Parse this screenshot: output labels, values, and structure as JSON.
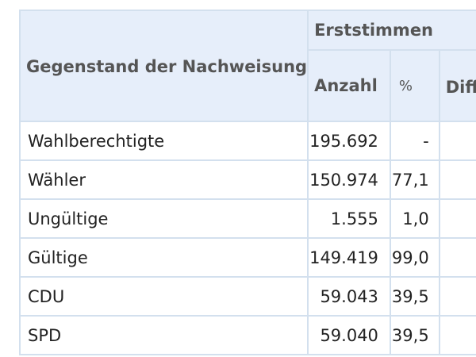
{
  "table": {
    "header": {
      "subject": "Gegenstand der Nachweisung",
      "group": "Erststimmen",
      "count": "Anzahl",
      "percent": "%",
      "diff": "Diff in %"
    },
    "rows": [
      {
        "label": "Wahlberechtigte",
        "count": "195.692",
        "percent": "-"
      },
      {
        "label": "Wähler",
        "count": "150.974",
        "percent": "77,1"
      },
      {
        "label": "Ungültige",
        "count": "1.555",
        "percent": "1,0"
      },
      {
        "label": "Gültige",
        "count": "149.419",
        "percent": "99,0"
      },
      {
        "label": "CDU",
        "count": "59.043",
        "percent": "39,5"
      },
      {
        "label": "SPD",
        "count": "59.040",
        "percent": "39,5"
      }
    ]
  }
}
